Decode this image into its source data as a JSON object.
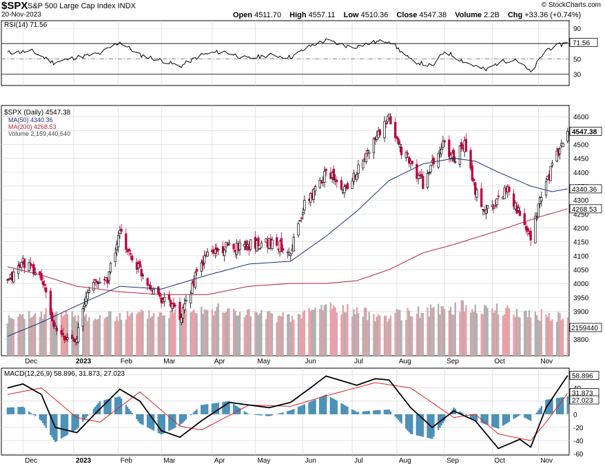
{
  "header": {
    "symbol": "$SPX",
    "name": "S&P 500 Large Cap Index",
    "exchange": "INDX",
    "date": "20-Nov-2023",
    "copyright": "© StockCharts.com",
    "open_label": "Open",
    "open": "4511.70",
    "high_label": "High",
    "high": "4557.11",
    "low_label": "Low",
    "low": "4510.36",
    "close_label": "Close",
    "close": "4547.38",
    "volume_label": "Volume",
    "volume": "2.2B",
    "chg_label": "Chg",
    "chg": "+33.36 (+0.74%)"
  },
  "colors": {
    "up": "#000000",
    "down": "#c0003c",
    "ma50": "#1a2a7a",
    "ma200": "#b0203c",
    "vol_up": "#b0b0b0",
    "vol_down": "#e8a0a8",
    "hist": "#4a90b8",
    "macd": "#000000",
    "signal": "#e02020",
    "grid": "#d8d8d8"
  },
  "chart_data": [
    {
      "type": "line",
      "panel": "rsi",
      "title": "RSI(14) 71.56",
      "ylim": [
        15,
        100
      ],
      "yticks": [
        30,
        50,
        70,
        90
      ],
      "last_value": "71.56",
      "series": [
        {
          "name": "RSI(14)",
          "x": [
            "2022-11-21",
            "2022-12-07",
            "2022-12-21",
            "2023-01-05",
            "2023-01-20",
            "2023-02-02",
            "2023-02-15",
            "2023-03-01",
            "2023-03-13",
            "2023-03-27",
            "2023-04-10",
            "2023-04-26",
            "2023-05-10",
            "2023-05-24",
            "2023-06-07",
            "2023-06-16",
            "2023-07-03",
            "2023-07-18",
            "2023-07-27",
            "2023-08-10",
            "2023-08-24",
            "2023-09-01",
            "2023-09-15",
            "2023-09-28",
            "2023-10-06",
            "2023-10-17",
            "2023-10-27",
            "2023-11-06",
            "2023-11-20"
          ],
          "values": [
            58,
            60,
            45,
            52,
            57,
            72,
            55,
            48,
            40,
            55,
            60,
            50,
            55,
            52,
            68,
            74,
            65,
            72,
            74,
            48,
            40,
            60,
            45,
            35,
            45,
            50,
            32,
            62,
            71.56
          ]
        }
      ]
    },
    {
      "type": "candlestick",
      "panel": "price",
      "title": "$SPX (Daily) 4547.38",
      "ylim": [
        3740,
        4640
      ],
      "yticks": [
        3800,
        3850,
        3900,
        3950,
        4000,
        4050,
        4100,
        4150,
        4200,
        4250,
        4300,
        4350,
        4400,
        4450,
        4500,
        4550,
        4600
      ],
      "xticks": [
        "Dec",
        "2023",
        "Feb",
        "Mar",
        "Apr",
        "May",
        "Jun",
        "Jul",
        "Aug",
        "Sep",
        "Oct",
        "Nov"
      ],
      "last_labels": [
        "4547.38",
        "4340.36",
        "4268.53",
        "2159440"
      ],
      "series": [
        {
          "name": "$SPX",
          "x": [
            "2022-11-21",
            "2022-12-01",
            "2022-12-13",
            "2022-12-22",
            "2022-12-28",
            "2023-01-05",
            "2023-01-13",
            "2023-01-25",
            "2023-02-02",
            "2023-02-10",
            "2023-02-21",
            "2023-03-01",
            "2023-03-09",
            "2023-03-13",
            "2023-03-22",
            "2023-03-31",
            "2023-04-14",
            "2023-04-27",
            "2023-05-10",
            "2023-05-24",
            "2023-06-02",
            "2023-06-12",
            "2023-06-16",
            "2023-06-26",
            "2023-07-06",
            "2023-07-18",
            "2023-07-27",
            "2023-08-04",
            "2023-08-18",
            "2023-08-31",
            "2023-09-07",
            "2023-09-14",
            "2023-09-21",
            "2023-09-27",
            "2023-10-06",
            "2023-10-12",
            "2023-10-20",
            "2023-10-27",
            "2023-11-02",
            "2023-11-10",
            "2023-11-17",
            "2023-11-20"
          ],
          "values": [
            4000,
            4080,
            4020,
            3830,
            3800,
            3810,
            3990,
            4020,
            4180,
            4090,
            4000,
            3950,
            3920,
            3860,
            4010,
            4110,
            4130,
            4140,
            4150,
            4120,
            4280,
            4360,
            4420,
            4330,
            4400,
            4520,
            4590,
            4480,
            4360,
            4500,
            4450,
            4500,
            4330,
            4260,
            4300,
            4350,
            4240,
            4150,
            4300,
            4420,
            4510,
            4547.38
          ]
        },
        {
          "name": "MA(50) 4340.36",
          "x": [
            "2022-11-21",
            "2022-12-13",
            "2023-01-05",
            "2023-02-02",
            "2023-03-01",
            "2023-03-31",
            "2023-04-27",
            "2023-05-24",
            "2023-06-16",
            "2023-07-06",
            "2023-07-27",
            "2023-08-18",
            "2023-09-07",
            "2023-09-21",
            "2023-10-06",
            "2023-10-27",
            "2023-11-10",
            "2023-11-20"
          ],
          "values": [
            3810,
            3860,
            3920,
            3990,
            3980,
            4030,
            4070,
            4080,
            4170,
            4260,
            4370,
            4430,
            4450,
            4440,
            4400,
            4350,
            4330,
            4340.36
          ]
        },
        {
          "name": "MA(200) 4268.53",
          "x": [
            "2022-11-21",
            "2022-12-13",
            "2023-01-05",
            "2023-02-02",
            "2023-03-01",
            "2023-03-31",
            "2023-04-27",
            "2023-05-24",
            "2023-06-16",
            "2023-07-06",
            "2023-07-27",
            "2023-08-18",
            "2023-09-07",
            "2023-10-06",
            "2023-11-02",
            "2023-11-20"
          ],
          "values": [
            4060,
            4030,
            3990,
            3970,
            3960,
            3960,
            3990,
            4000,
            4000,
            4010,
            4050,
            4110,
            4140,
            4190,
            4240,
            4268.53
          ]
        },
        {
          "name": "Volume 2,159,440,640",
          "x": [
            "2022-11-21",
            "2022-12-16",
            "2023-01-20",
            "2023-03-10",
            "2023-03-17",
            "2023-05-24",
            "2023-06-16",
            "2023-07-21",
            "2023-09-15",
            "2023-10-27",
            "2023-11-20"
          ],
          "values": [
            3.9,
            4.5,
            4.1,
            4.7,
            5.4,
            4.0,
            5.4,
            4.2,
            5.3,
            4.5,
            4.1
          ]
        }
      ]
    },
    {
      "type": "line",
      "panel": "macd",
      "title": "MACD(12,26,9) 58.896, 31.873, 27.023",
      "ylim": [
        -62,
        70
      ],
      "yticks": [
        -60,
        -40,
        -20,
        0,
        20,
        40,
        60
      ],
      "xticks": [
        "Dec",
        "2023",
        "Feb",
        "Mar",
        "Apr",
        "May",
        "Jun",
        "Jul",
        "Aug",
        "Sep",
        "Oct",
        "Nov"
      ],
      "last_labels": [
        "58.896",
        "31.873",
        "27.023"
      ],
      "series": [
        {
          "name": "MACD",
          "x": [
            "2022-11-21",
            "2022-12-01",
            "2022-12-13",
            "2022-12-22",
            "2023-01-05",
            "2023-01-20",
            "2023-02-02",
            "2023-02-15",
            "2023-03-01",
            "2023-03-13",
            "2023-03-27",
            "2023-04-14",
            "2023-04-27",
            "2023-05-10",
            "2023-05-24",
            "2023-06-07",
            "2023-06-16",
            "2023-07-06",
            "2023-07-18",
            "2023-07-27",
            "2023-08-10",
            "2023-08-24",
            "2023-09-07",
            "2023-09-21",
            "2023-10-06",
            "2023-10-20",
            "2023-10-27",
            "2023-11-06",
            "2023-11-20"
          ],
          "values": [
            40,
            46,
            30,
            -20,
            -28,
            8,
            38,
            20,
            -25,
            -35,
            -10,
            18,
            14,
            10,
            18,
            42,
            58,
            44,
            54,
            52,
            10,
            -20,
            5,
            -10,
            -52,
            -38,
            -50,
            10,
            58.896
          ]
        },
        {
          "name": "Signal",
          "x": [
            "2022-11-21",
            "2022-12-13",
            "2023-01-05",
            "2023-01-20",
            "2023-02-15",
            "2023-03-13",
            "2023-03-27",
            "2023-04-27",
            "2023-05-24",
            "2023-06-16",
            "2023-07-18",
            "2023-08-10",
            "2023-09-07",
            "2023-09-21",
            "2023-10-06",
            "2023-10-27",
            "2023-11-06",
            "2023-11-20"
          ],
          "values": [
            30,
            40,
            -5,
            -12,
            34,
            -18,
            -24,
            14,
            12,
            28,
            48,
            40,
            -5,
            0,
            -30,
            -40,
            -12,
            31.873
          ]
        },
        {
          "name": "Histogram",
          "x": [
            "2022-12-22",
            "2023-01-20",
            "2023-03-13",
            "2023-04-14",
            "2023-06-07",
            "2023-08-10",
            "2023-09-21",
            "2023-10-06",
            "2023-11-06",
            "2023-11-20"
          ],
          "values": [
            -22,
            18,
            -28,
            12,
            18,
            -24,
            -12,
            -22,
            22,
            27.023
          ]
        }
      ]
    }
  ]
}
